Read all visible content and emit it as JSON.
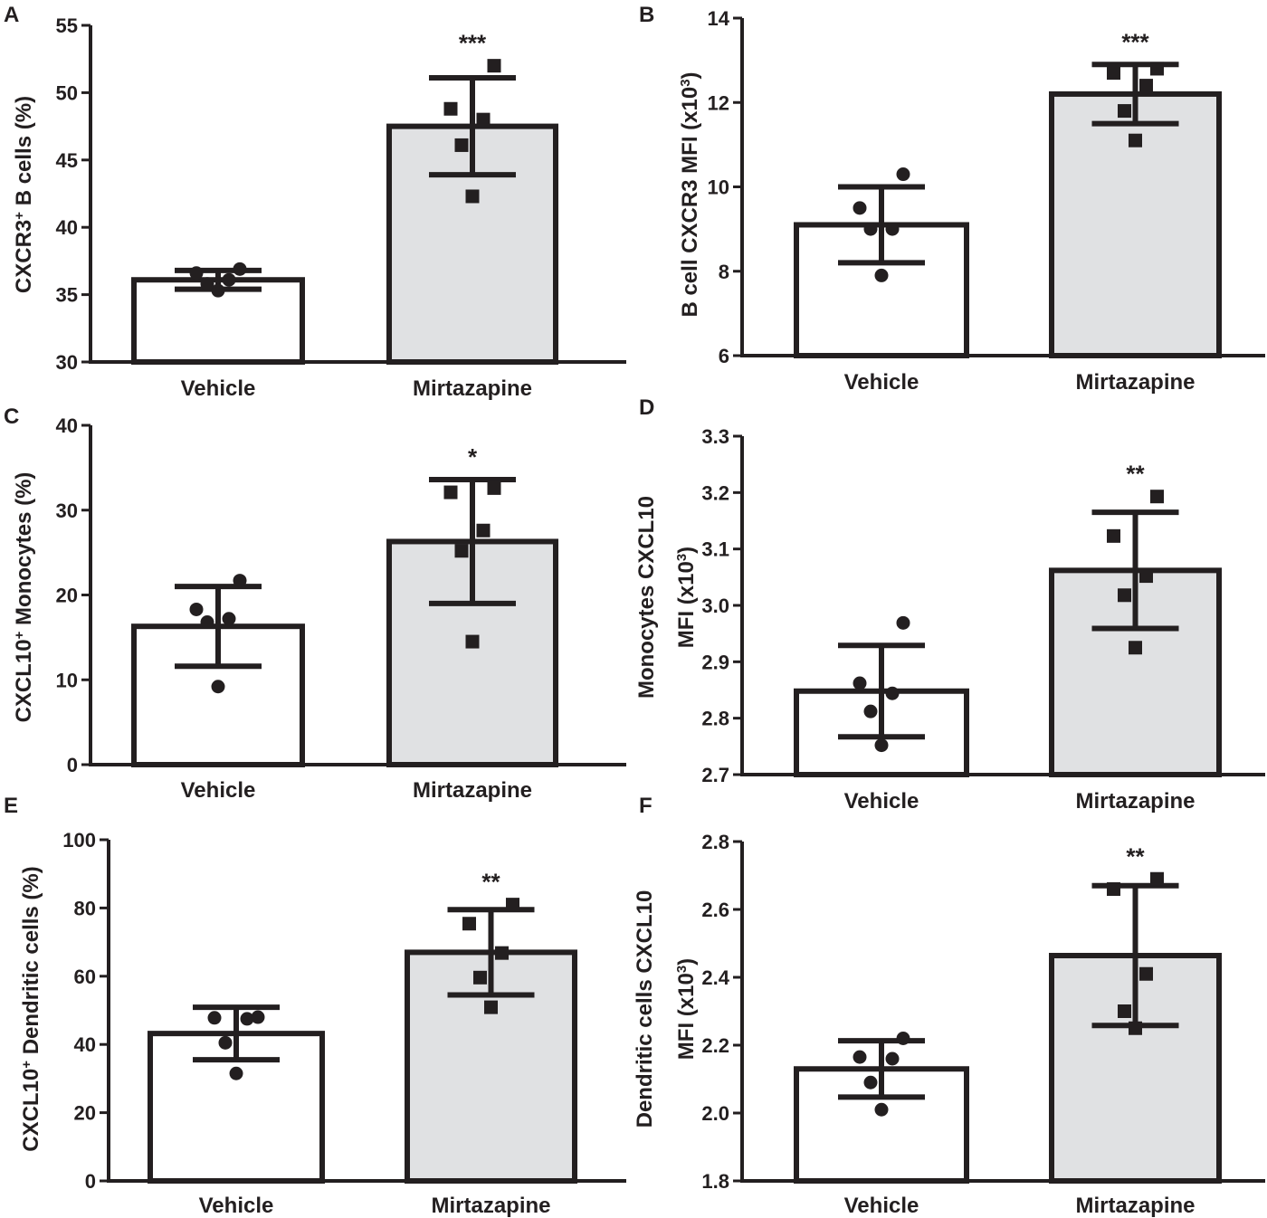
{
  "colors": {
    "ink": "#231f20",
    "vehicle_fill": "#ffffff",
    "mirtazapine_fill": "#e0e1e3"
  },
  "chart_data": [
    {
      "panel": "A",
      "type": "bar",
      "ylabel": "CXCR3",
      "ylabel_sup": "+",
      "ylabel_suffix": " B cells (%)",
      "ylim": [
        30,
        55
      ],
      "yticks": [
        30,
        35,
        40,
        45,
        50,
        55
      ],
      "decimals": 0,
      "categories": [
        "Vehicle",
        "Mirtazapine"
      ],
      "means": [
        36.1,
        47.5
      ],
      "sd": [
        0.7,
        3.6
      ],
      "points": [
        [
          35.3,
          35.8,
          36.1,
          36.6,
          36.9
        ],
        [
          42.3,
          46.1,
          48.0,
          48.8,
          52.0
        ]
      ],
      "significance": [
        "",
        "***"
      ]
    },
    {
      "panel": "B",
      "type": "bar",
      "ylabel": "B cell CXCR3 MFI (x10",
      "ylabel_sup": "3",
      "ylabel_suffix": ")",
      "ylim": [
        6,
        14
      ],
      "yticks": [
        6,
        8,
        10,
        12,
        14
      ],
      "decimals": 0,
      "categories": [
        "Vehicle",
        "Mirtazapine"
      ],
      "means": [
        9.1,
        12.2
      ],
      "sd": [
        0.9,
        0.7
      ],
      "points": [
        [
          7.9,
          9.0,
          9.0,
          9.5,
          10.3
        ],
        [
          11.1,
          11.8,
          12.4,
          12.7,
          12.8
        ]
      ],
      "significance": [
        "",
        "***"
      ]
    },
    {
      "panel": "C",
      "type": "bar",
      "ylabel": "CXCL10",
      "ylabel_sup": "+",
      "ylabel_suffix": " Monocytes (%)",
      "ylim": [
        0,
        40
      ],
      "yticks": [
        0,
        10,
        20,
        30,
        40
      ],
      "decimals": 0,
      "categories": [
        "Vehicle",
        "Mirtazapine"
      ],
      "means": [
        16.3,
        26.3
      ],
      "sd": [
        4.7,
        7.3
      ],
      "points": [
        [
          9.2,
          16.8,
          17.2,
          18.3,
          21.7
        ],
        [
          14.5,
          25.2,
          27.6,
          32.1,
          32.6
        ]
      ],
      "significance": [
        "",
        "*"
      ]
    },
    {
      "panel": "D",
      "type": "bar",
      "ylabel": "Monocytes CXCL10",
      "ylabel2": "MFI (x10",
      "ylabel_sup": "3",
      "ylabel_suffix": ")",
      "ylim": [
        2.7,
        3.3
      ],
      "yticks": [
        2.7,
        2.8,
        2.9,
        3.0,
        3.1,
        3.2,
        3.3
      ],
      "decimals": 1,
      "categories": [
        "Vehicle",
        "Mirtazapine"
      ],
      "means": [
        2.848,
        3.062
      ],
      "sd": [
        0.081,
        0.103
      ],
      "points": [
        [
          2.752,
          2.812,
          2.844,
          2.862,
          2.969
        ],
        [
          2.925,
          3.018,
          3.052,
          3.123,
          3.193
        ]
      ],
      "significance": [
        "",
        "**"
      ]
    },
    {
      "panel": "E",
      "type": "bar",
      "ylabel": "CXCL10",
      "ylabel_sup": "+",
      "ylabel_suffix": " Dendritic cells (%)",
      "ylim": [
        0,
        100
      ],
      "yticks": [
        0,
        20,
        40,
        60,
        80,
        100
      ],
      "decimals": 0,
      "categories": [
        "Vehicle",
        "Mirtazapine"
      ],
      "means": [
        43.2,
        67.0
      ],
      "sd": [
        7.7,
        12.5
      ],
      "points": [
        [
          31.5,
          40.5,
          47.5,
          47.8,
          48.0
        ],
        [
          50.9,
          59.6,
          66.8,
          75.4,
          81.0
        ]
      ],
      "significance": [
        "",
        "**"
      ]
    },
    {
      "panel": "F",
      "type": "bar",
      "ylabel": "Dendritic cells CXCL10",
      "ylabel2": "MFI (x10",
      "ylabel_sup": "3",
      "ylabel_suffix": ")",
      "ylim": [
        1.8,
        2.8
      ],
      "yticks": [
        1.8,
        2.0,
        2.2,
        2.4,
        2.6,
        2.8
      ],
      "decimals": 1,
      "categories": [
        "Vehicle",
        "Mirtazapine"
      ],
      "means": [
        2.13,
        2.464
      ],
      "sd": [
        0.083,
        0.206
      ],
      "points": [
        [
          2.01,
          2.09,
          2.16,
          2.165,
          2.22
        ],
        [
          2.25,
          2.3,
          2.41,
          2.66,
          2.69
        ]
      ],
      "significance": [
        "",
        "**"
      ]
    }
  ]
}
